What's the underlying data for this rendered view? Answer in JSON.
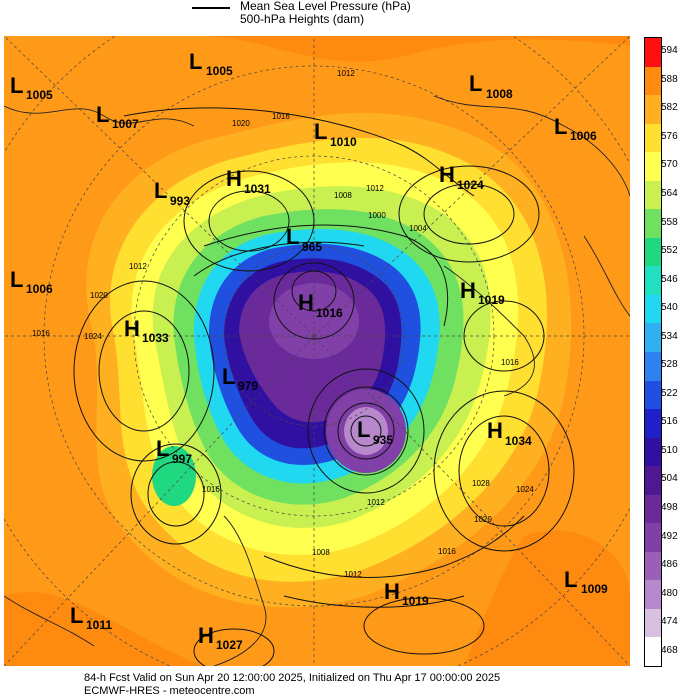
{
  "legend": {
    "line1": "Mean Sea Level Pressure (hPa)",
    "line2": "500-hPa Heights (dam)"
  },
  "scale": {
    "labels": [
      "594",
      "588",
      "582",
      "576",
      "570",
      "564",
      "558",
      "552",
      "546",
      "540",
      "534",
      "528",
      "522",
      "516",
      "510",
      "504",
      "498",
      "492",
      "486",
      "480",
      "474",
      "468"
    ],
    "colors": [
      "#ff1010",
      "#ff8a10",
      "#ffb020",
      "#ffe030",
      "#ffff50",
      "#c8f050",
      "#70e060",
      "#20d880",
      "#20e0c0",
      "#20d8f0",
      "#30b0f0",
      "#3080f0",
      "#2050e0",
      "#2020c8",
      "#3010a0",
      "#501890",
      "#6a2a9a",
      "#8040a8",
      "#9a60b8",
      "#b888cc",
      "#d8c0e0",
      "#ffffff"
    ]
  },
  "systems": {
    "L1005a": {
      "type": "L",
      "value": "1005"
    },
    "L1005b": {
      "type": "L",
      "value": "1005"
    },
    "L1007": {
      "type": "L",
      "value": "1007"
    },
    "L1008": {
      "type": "L",
      "value": "1008"
    },
    "L1006a": {
      "type": "L",
      "value": "1006"
    },
    "L1010": {
      "type": "L",
      "value": "1010"
    },
    "L993": {
      "type": "L",
      "value": "993"
    },
    "H1031": {
      "type": "H",
      "value": "1031"
    },
    "H1024": {
      "type": "H",
      "value": "1024"
    },
    "L1006b": {
      "type": "L",
      "value": "1006"
    },
    "L965": {
      "type": "L",
      "value": "965"
    },
    "H1019a": {
      "type": "H",
      "value": "1019"
    },
    "H1033": {
      "type": "H",
      "value": "1033"
    },
    "H1016": {
      "type": "H",
      "value": "1016"
    },
    "L979": {
      "type": "L",
      "value": "979"
    },
    "L935": {
      "type": "L",
      "value": "935"
    },
    "H1034": {
      "type": "H",
      "value": "1034"
    },
    "L997": {
      "type": "L",
      "value": "997"
    },
    "H1019b": {
      "type": "H",
      "value": "1019"
    },
    "L1009": {
      "type": "L",
      "value": "1009"
    },
    "L1011": {
      "type": "L",
      "value": "1011"
    },
    "H1027": {
      "type": "H",
      "value": "1027"
    }
  },
  "isobar_labels": [
    "1012",
    "1016",
    "1020",
    "1012",
    "1008",
    "1004",
    "1000",
    "1012",
    "1016",
    "1024",
    "1020",
    "1016",
    "1012",
    "1008",
    "1016",
    "1012",
    "1024",
    "1020",
    "1028",
    "1016"
  ],
  "footer": {
    "line1": "84-h Fcst Valid on Sun Apr 20 12:00:00 2025, Initialized on Thu Apr 17 00:00:00 2025",
    "line2": "ECMWF-HRES  - meteocentre.com"
  }
}
